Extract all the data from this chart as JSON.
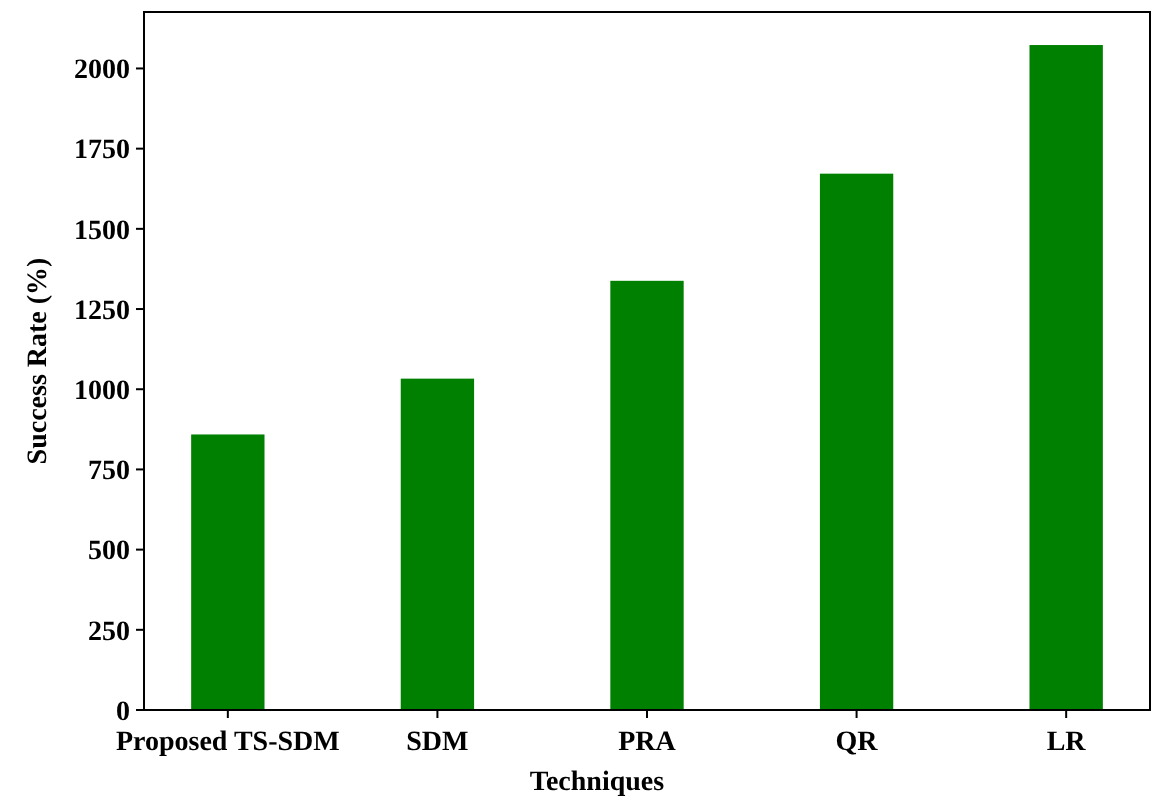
{
  "chart_data": {
    "type": "bar",
    "xlabel": "Techniques",
    "ylabel": "Success Rate (%)",
    "categories": [
      "Proposed TS-SDM",
      "SDM",
      "PRA",
      "QR",
      "LR"
    ],
    "values": [
      859,
      1033,
      1338,
      1672,
      2073
    ],
    "color": "#008000",
    "ylim": [
      0,
      2176
    ],
    "yticks": [
      0,
      250,
      500,
      750,
      1000,
      1250,
      1500,
      1750,
      2000
    ],
    "grid": false
  }
}
